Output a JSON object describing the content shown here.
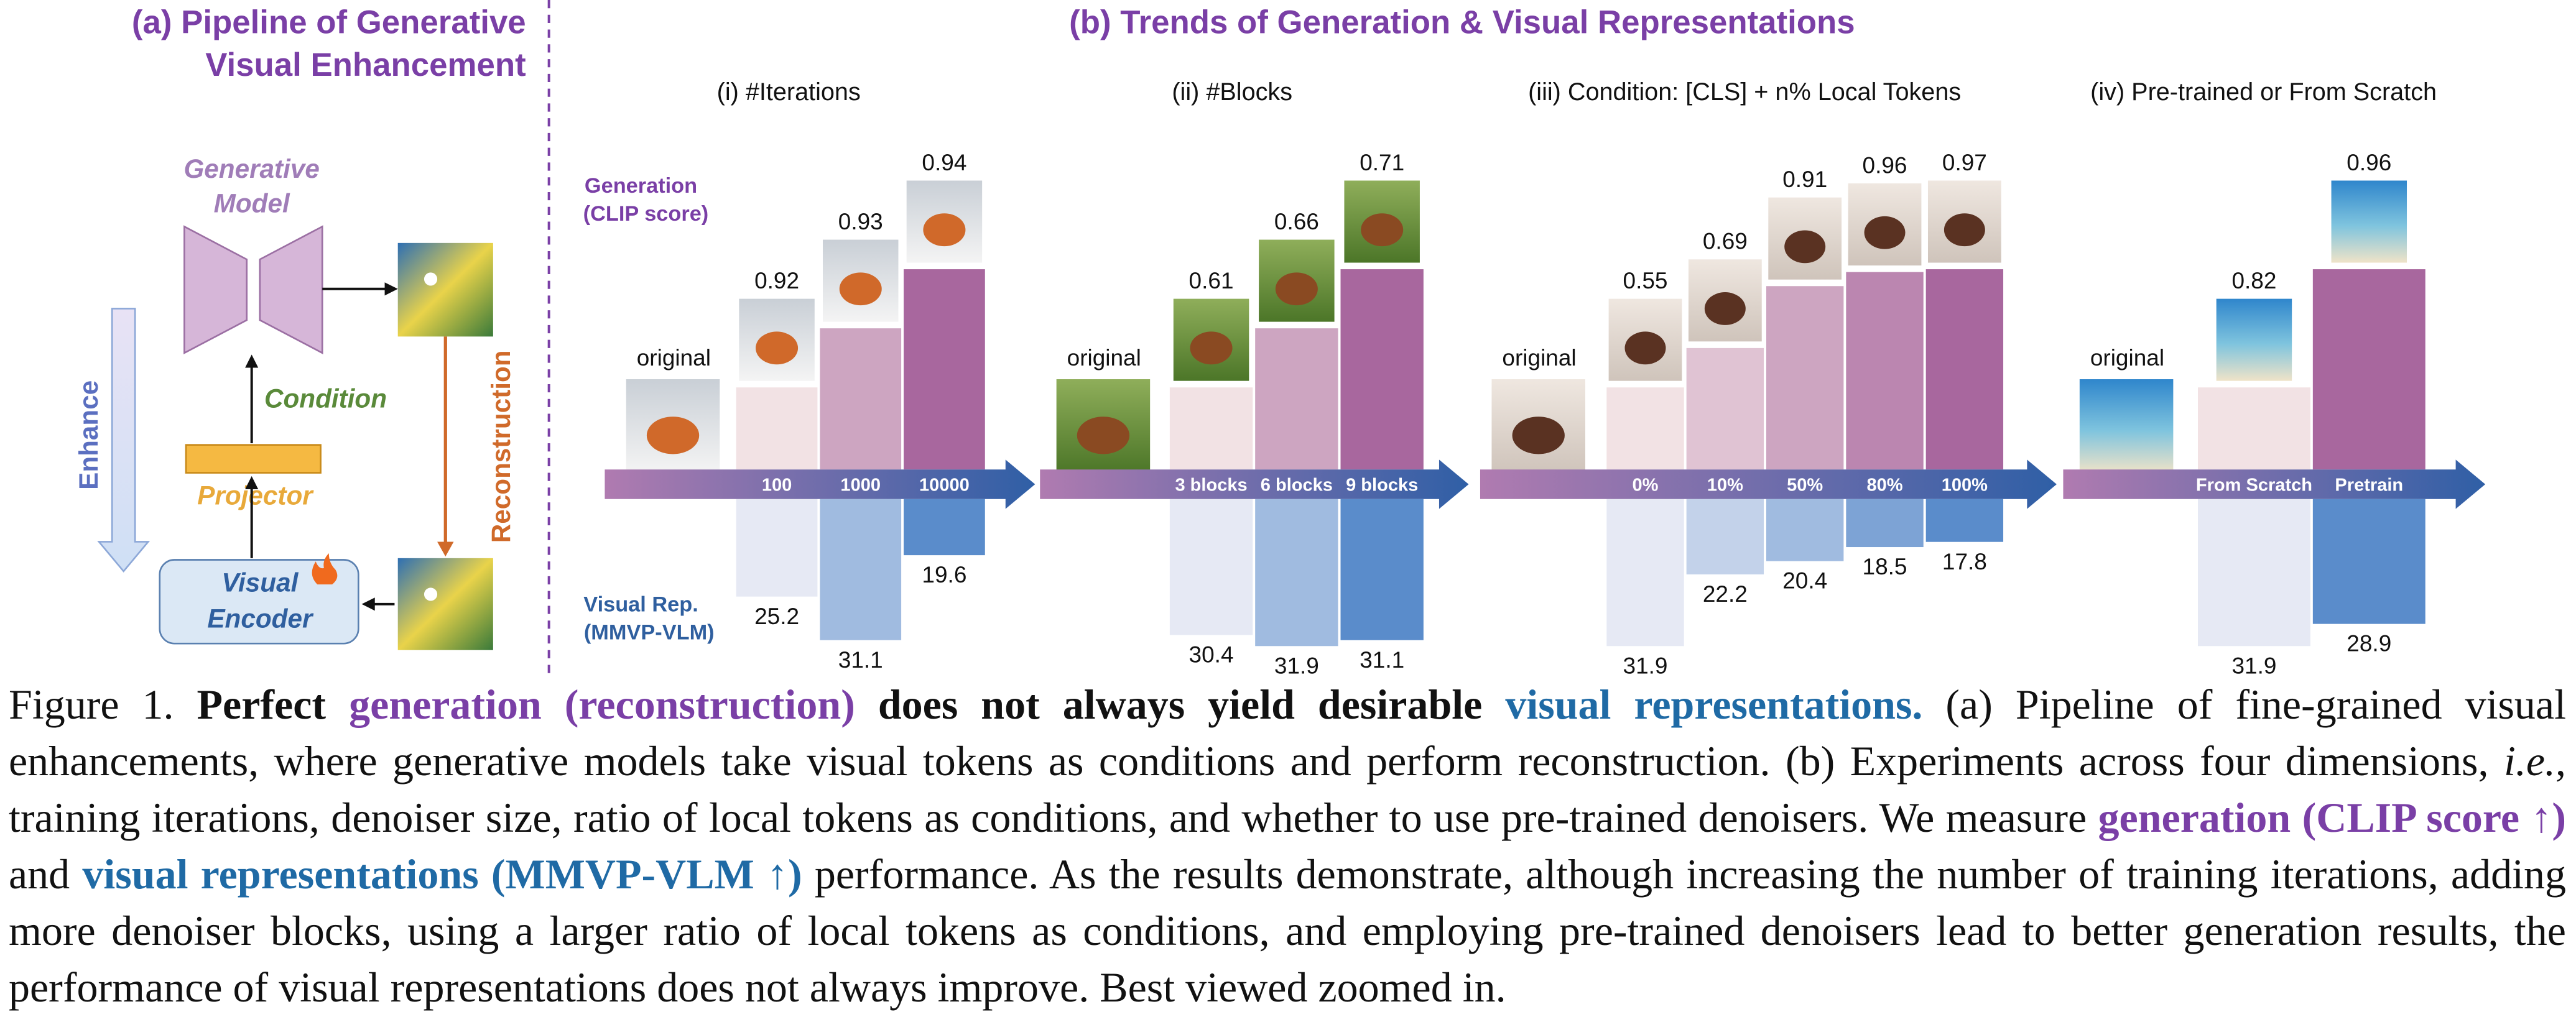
{
  "panel_a": {
    "title_lines": [
      "(a) Pipeline of Generative",
      "Visual Enhancement"
    ],
    "generative_model": [
      "Generative",
      "Model"
    ],
    "condition": "Condition",
    "projector": "Projector",
    "visual_encoder": [
      "Visual",
      "Encoder"
    ],
    "enhance": "Enhance",
    "reconstruction": "Reconstruction"
  },
  "panel_b": {
    "title": "(b) Trends of Generation & Visual Representations",
    "generation_label": [
      "Generation",
      "(CLIP score)"
    ],
    "visual_label": [
      "Visual Rep.",
      "(MMVP-VLM)"
    ],
    "original": "original",
    "subpanels": [
      {
        "title": "(i) #Iterations",
        "categories": [
          "100",
          "1000",
          "10000"
        ],
        "generation": [
          0.92,
          0.93,
          0.94
        ],
        "visual": [
          25.2,
          31.1,
          19.6
        ]
      },
      {
        "title": "(ii) #Blocks",
        "categories": [
          "3 blocks",
          "6 blocks",
          "9 blocks"
        ],
        "generation": [
          0.61,
          0.66,
          0.71
        ],
        "visual": [
          30.4,
          31.9,
          31.1
        ]
      },
      {
        "title": "(iii) Condition: [CLS] + n% Local Tokens",
        "categories": [
          "0%",
          "10%",
          "50%",
          "80%",
          "100%"
        ],
        "generation": [
          0.55,
          0.69,
          0.91,
          0.96,
          0.97
        ],
        "visual": [
          31.9,
          22.2,
          20.4,
          18.5,
          17.8
        ]
      },
      {
        "title": "(iv) Pre-trained or From Scratch",
        "categories": [
          "From Scratch",
          "Pretrain"
        ],
        "generation": [
          0.82,
          0.96
        ],
        "visual": [
          31.9,
          28.9
        ]
      }
    ]
  },
  "caption": [
    "Figure 1.",
    "Perfect",
    "generation (reconstruction)",
    "does not always yield desirable",
    "visual representations.",
    "(a) Pipeline of fine-grained visual enhancements, where generative models take visual tokens as conditions and perform reconstruction. (b) Experiments across four dimensions,",
    "i.e.",
    ", training iterations, denoiser size, ratio of local tokens as conditions, and whether to use pre-trained denoisers. We measure",
    "generation (CLIP score ↑)",
    "and",
    "visual representations (MMVP-VLM ↑)",
    "performance. As the results demonstrate, although increasing the number of training iterations, adding more denoiser blocks, using a larger ratio of local tokens as conditions, and employing pre-trained denoisers lead to better generation results, the performance of visual representations does not always improve. Best viewed zoomed in."
  ]
}
